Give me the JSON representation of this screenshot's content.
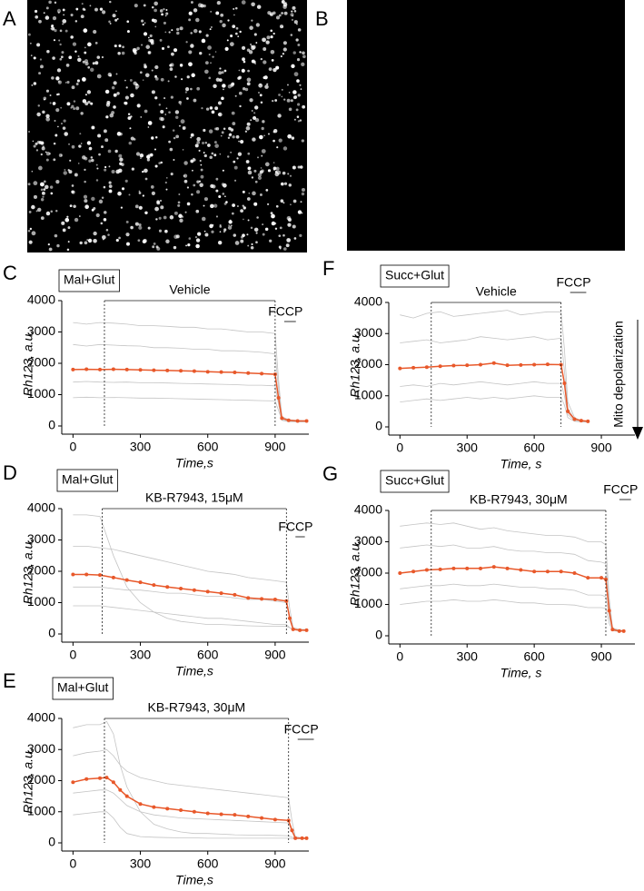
{
  "panel_labels": {
    "A": "A",
    "B": "B"
  },
  "side_annotation": "Mito depolarization",
  "chart_data": [
    {
      "type": "line",
      "panel": "C",
      "condition": "Mal+Glut",
      "ylabel": "Rh123, a.u.",
      "xlabel": "Time,s",
      "xlim": [
        -50,
        1050
      ],
      "xticks": [
        0,
        300,
        600,
        900
      ],
      "ylim": [
        0,
        4000
      ],
      "yticks": [
        0,
        1000,
        2000,
        3000,
        4000
      ],
      "treatment": {
        "text": "Vehicle",
        "start": 140,
        "end": 900
      },
      "fccp": {
        "text": "FCCP",
        "start": 900,
        "end": 960
      },
      "x": [
        0,
        60,
        120,
        180,
        240,
        300,
        360,
        420,
        480,
        540,
        600,
        660,
        720,
        780,
        840,
        900,
        915,
        930,
        960,
        1000,
        1040
      ],
      "series": [
        {
          "color": "#c4c4c4",
          "values": [
            3300,
            3250,
            3300,
            3280,
            3250,
            3200,
            3200,
            3180,
            3150,
            3150,
            3100,
            3100,
            3050,
            3000,
            3000,
            2950,
            1500,
            300,
            200,
            180,
            170
          ]
        },
        {
          "color": "#c4c4c4",
          "values": [
            2600,
            2550,
            2600,
            2580,
            2560,
            2550,
            2500,
            2500,
            2480,
            2450,
            2450,
            2400,
            2400,
            2380,
            2350,
            2300,
            1200,
            250,
            180,
            160,
            160
          ]
        },
        {
          "color": "#c4c4c4",
          "values": [
            1400,
            1420,
            1400,
            1390,
            1400,
            1380,
            1380,
            1370,
            1360,
            1350,
            1340,
            1330,
            1320,
            1300,
            1300,
            1280,
            700,
            200,
            150,
            140,
            140
          ]
        },
        {
          "color": "#c4c4c4",
          "values": [
            900,
            920,
            900,
            910,
            900,
            890,
            890,
            880,
            870,
            860,
            850,
            840,
            830,
            820,
            810,
            800,
            500,
            180,
            140,
            130,
            130
          ]
        },
        {
          "color": "#e8582a",
          "markers": true,
          "values": [
            1800,
            1810,
            1800,
            1810,
            1800,
            1790,
            1780,
            1770,
            1760,
            1750,
            1730,
            1720,
            1710,
            1690,
            1670,
            1650,
            900,
            250,
            180,
            160,
            160
          ]
        }
      ]
    },
    {
      "type": "line",
      "panel": "D",
      "condition": "Mal+Glut",
      "ylabel": "Rh123, a.u.",
      "xlabel": "Time,s",
      "xlim": [
        -50,
        1050
      ],
      "xticks": [
        0,
        300,
        600,
        900
      ],
      "ylim": [
        0,
        4000
      ],
      "yticks": [
        0,
        1000,
        2000,
        3000,
        4000
      ],
      "treatment": {
        "text": "KB-R7943, 15μM",
        "start": 130,
        "end": 950
      },
      "fccp": {
        "text": "FCCP",
        "start": 950,
        "end": 1000
      },
      "x": [
        0,
        60,
        120,
        180,
        240,
        300,
        360,
        420,
        480,
        540,
        600,
        660,
        720,
        780,
        840,
        900,
        950,
        965,
        980,
        1010,
        1040
      ],
      "series": [
        {
          "color": "#c4c4c4",
          "values": [
            3800,
            3800,
            3750,
            2500,
            1500,
            1000,
            700,
            500,
            400,
            350,
            300,
            300,
            280,
            260,
            250,
            250,
            240,
            200,
            150,
            120,
            120
          ]
        },
        {
          "color": "#c4c4c4",
          "values": [
            2800,
            2800,
            2750,
            2700,
            2600,
            2500,
            2400,
            2300,
            2200,
            2100,
            2000,
            1950,
            1900,
            1800,
            1750,
            1700,
            1650,
            800,
            200,
            150,
            140
          ]
        },
        {
          "color": "#c4c4c4",
          "values": [
            1500,
            1500,
            1500,
            1450,
            1400,
            1400,
            1350,
            1300,
            1300,
            1250,
            1200,
            1200,
            1150,
            1100,
            1100,
            1050,
            1000,
            500,
            150,
            120,
            120
          ]
        },
        {
          "color": "#c4c4c4",
          "values": [
            900,
            900,
            900,
            850,
            800,
            750,
            700,
            650,
            600,
            550,
            500,
            500,
            450,
            400,
            350,
            300,
            300,
            200,
            130,
            110,
            110
          ]
        },
        {
          "color": "#e8582a",
          "markers": true,
          "values": [
            1900,
            1900,
            1880,
            1800,
            1720,
            1650,
            1560,
            1500,
            1450,
            1400,
            1350,
            1300,
            1250,
            1150,
            1120,
            1100,
            1050,
            500,
            150,
            120,
            120
          ]
        }
      ]
    },
    {
      "type": "line",
      "panel": "E",
      "condition": "Mal+Glut",
      "ylabel": "Rh123, a.u.",
      "xlabel": "Time,s",
      "xlim": [
        -50,
        1050
      ],
      "xticks": [
        0,
        300,
        600,
        900
      ],
      "ylim": [
        0,
        4000
      ],
      "yticks": [
        0,
        1000,
        2000,
        3000,
        4000
      ],
      "treatment": {
        "text": "KB-R7943, 30μM",
        "start": 140,
        "end": 960
      },
      "fccp": {
        "text": "FCCP",
        "start": 960,
        "end": 1040
      },
      "x": [
        0,
        60,
        120,
        150,
        180,
        210,
        240,
        300,
        360,
        420,
        480,
        540,
        600,
        660,
        720,
        780,
        840,
        900,
        960,
        975,
        990,
        1020,
        1040
      ],
      "series": [
        {
          "color": "#c4c4c4",
          "values": [
            3700,
            3800,
            3800,
            3900,
            3500,
            2500,
            1800,
            1000,
            600,
            450,
            350,
            300,
            300,
            280,
            260,
            250,
            250,
            240,
            230,
            180,
            150,
            140,
            140
          ]
        },
        {
          "color": "#c4c4c4",
          "values": [
            2800,
            2900,
            2950,
            3000,
            2800,
            2500,
            2300,
            2100,
            2000,
            1900,
            1850,
            1800,
            1750,
            1700,
            1650,
            1600,
            1550,
            1500,
            1450,
            700,
            200,
            160,
            150
          ]
        },
        {
          "color": "#c4c4c4",
          "values": [
            1600,
            1650,
            1700,
            1700,
            1600,
            1400,
            1200,
            1000,
            900,
            850,
            800,
            780,
            760,
            740,
            720,
            700,
            680,
            660,
            640,
            350,
            150,
            140,
            140
          ]
        },
        {
          "color": "#c4c4c4",
          "values": [
            900,
            950,
            1000,
            1000,
            800,
            500,
            300,
            200,
            180,
            170,
            160,
            160,
            150,
            150,
            150,
            150,
            150,
            150,
            150,
            140,
            130,
            130,
            130
          ]
        },
        {
          "color": "#e8582a",
          "markers": true,
          "values": [
            1950,
            2050,
            2080,
            2100,
            1950,
            1700,
            1500,
            1250,
            1150,
            1100,
            1050,
            1000,
            950,
            920,
            900,
            850,
            800,
            750,
            720,
            400,
            150,
            150,
            150
          ]
        }
      ]
    },
    {
      "type": "line",
      "panel": "F",
      "condition": "Succ+Glut",
      "ylabel": "Rh123, a.u.",
      "xlabel": "Time, s",
      "xlim": [
        -50,
        1050
      ],
      "xticks": [
        0,
        300,
        600,
        900
      ],
      "ylim": [
        0,
        4000
      ],
      "yticks": [
        0,
        1000,
        2000,
        3000,
        4000
      ],
      "treatment": {
        "text": "Vehicle",
        "start": 140,
        "end": 720
      },
      "fccp": {
        "text": "FCCP",
        "start": 720,
        "end": 800
      },
      "x": [
        0,
        60,
        120,
        180,
        240,
        300,
        360,
        420,
        480,
        540,
        600,
        660,
        720,
        735,
        750,
        780,
        810,
        840
      ],
      "series": [
        {
          "color": "#c4c4c4",
          "values": [
            3600,
            3500,
            3650,
            3700,
            3550,
            3600,
            3650,
            3700,
            3750,
            3600,
            3650,
            3700,
            3700,
            2500,
            800,
            300,
            200,
            180
          ]
        },
        {
          "color": "#c4c4c4",
          "values": [
            2700,
            2750,
            2800,
            2700,
            2750,
            2800,
            2900,
            2850,
            2800,
            2850,
            2900,
            2800,
            2850,
            1800,
            600,
            250,
            200,
            170
          ]
        },
        {
          "color": "#c4c4c4",
          "values": [
            1300,
            1350,
            1300,
            1400,
            1350,
            1400,
            1450,
            1400,
            1350,
            1400,
            1450,
            1400,
            1400,
            1000,
            400,
            200,
            170,
            160
          ]
        },
        {
          "color": "#c4c4c4",
          "values": [
            800,
            850,
            900,
            850,
            900,
            950,
            900,
            950,
            900,
            950,
            1000,
            950,
            950,
            700,
            300,
            180,
            160,
            150
          ]
        },
        {
          "color": "#e8582a",
          "markers": true,
          "values": [
            1880,
            1900,
            1920,
            1950,
            1970,
            1980,
            2000,
            2050,
            1980,
            1990,
            2000,
            2010,
            2000,
            1400,
            500,
            250,
            200,
            180
          ]
        }
      ]
    },
    {
      "type": "line",
      "panel": "G",
      "condition": "Succ+Glut",
      "ylabel": "Rh123, a.u.",
      "xlabel": "Time, s",
      "xlim": [
        -50,
        1050
      ],
      "xticks": [
        0,
        300,
        600,
        900
      ],
      "ylim": [
        0,
        4000
      ],
      "yticks": [
        0,
        1000,
        2000,
        3000,
        4000
      ],
      "treatment": {
        "text": "KB-R7943, 30μM",
        "start": 140,
        "end": 920
      },
      "fccp": {
        "text": "FCCP",
        "start": 940,
        "end": 1000
      },
      "x": [
        0,
        60,
        120,
        180,
        240,
        300,
        360,
        420,
        480,
        540,
        600,
        660,
        720,
        780,
        840,
        900,
        920,
        935,
        950,
        980,
        1000
      ],
      "series": [
        {
          "color": "#c4c4c4",
          "values": [
            3500,
            3550,
            3600,
            3550,
            3600,
            3500,
            3400,
            3450,
            3350,
            3300,
            3250,
            3200,
            3200,
            3150,
            3000,
            3000,
            2900,
            1200,
            250,
            180,
            170
          ]
        },
        {
          "color": "#c4c4c4",
          "values": [
            2800,
            2850,
            2900,
            2850,
            2900,
            2800,
            2800,
            2850,
            2750,
            2700,
            2700,
            2650,
            2650,
            2600,
            2400,
            2350,
            2300,
            1000,
            220,
            170,
            160
          ]
        },
        {
          "color": "#c4c4c4",
          "values": [
            1500,
            1550,
            1600,
            1600,
            1650,
            1600,
            1600,
            1650,
            1600,
            1550,
            1550,
            1500,
            1500,
            1450,
            1300,
            1300,
            1250,
            600,
            180,
            150,
            140
          ]
        },
        {
          "color": "#c4c4c4",
          "values": [
            1000,
            1050,
            1100,
            1100,
            1150,
            1100,
            1100,
            1150,
            1100,
            1050,
            1050,
            1000,
            1000,
            980,
            900,
            900,
            880,
            400,
            160,
            140,
            140
          ]
        },
        {
          "color": "#e8582a",
          "markers": true,
          "values": [
            2000,
            2050,
            2100,
            2120,
            2150,
            2150,
            2150,
            2200,
            2150,
            2100,
            2050,
            2050,
            2050,
            2000,
            1850,
            1850,
            1800,
            800,
            200,
            150,
            150
          ]
        }
      ]
    }
  ]
}
